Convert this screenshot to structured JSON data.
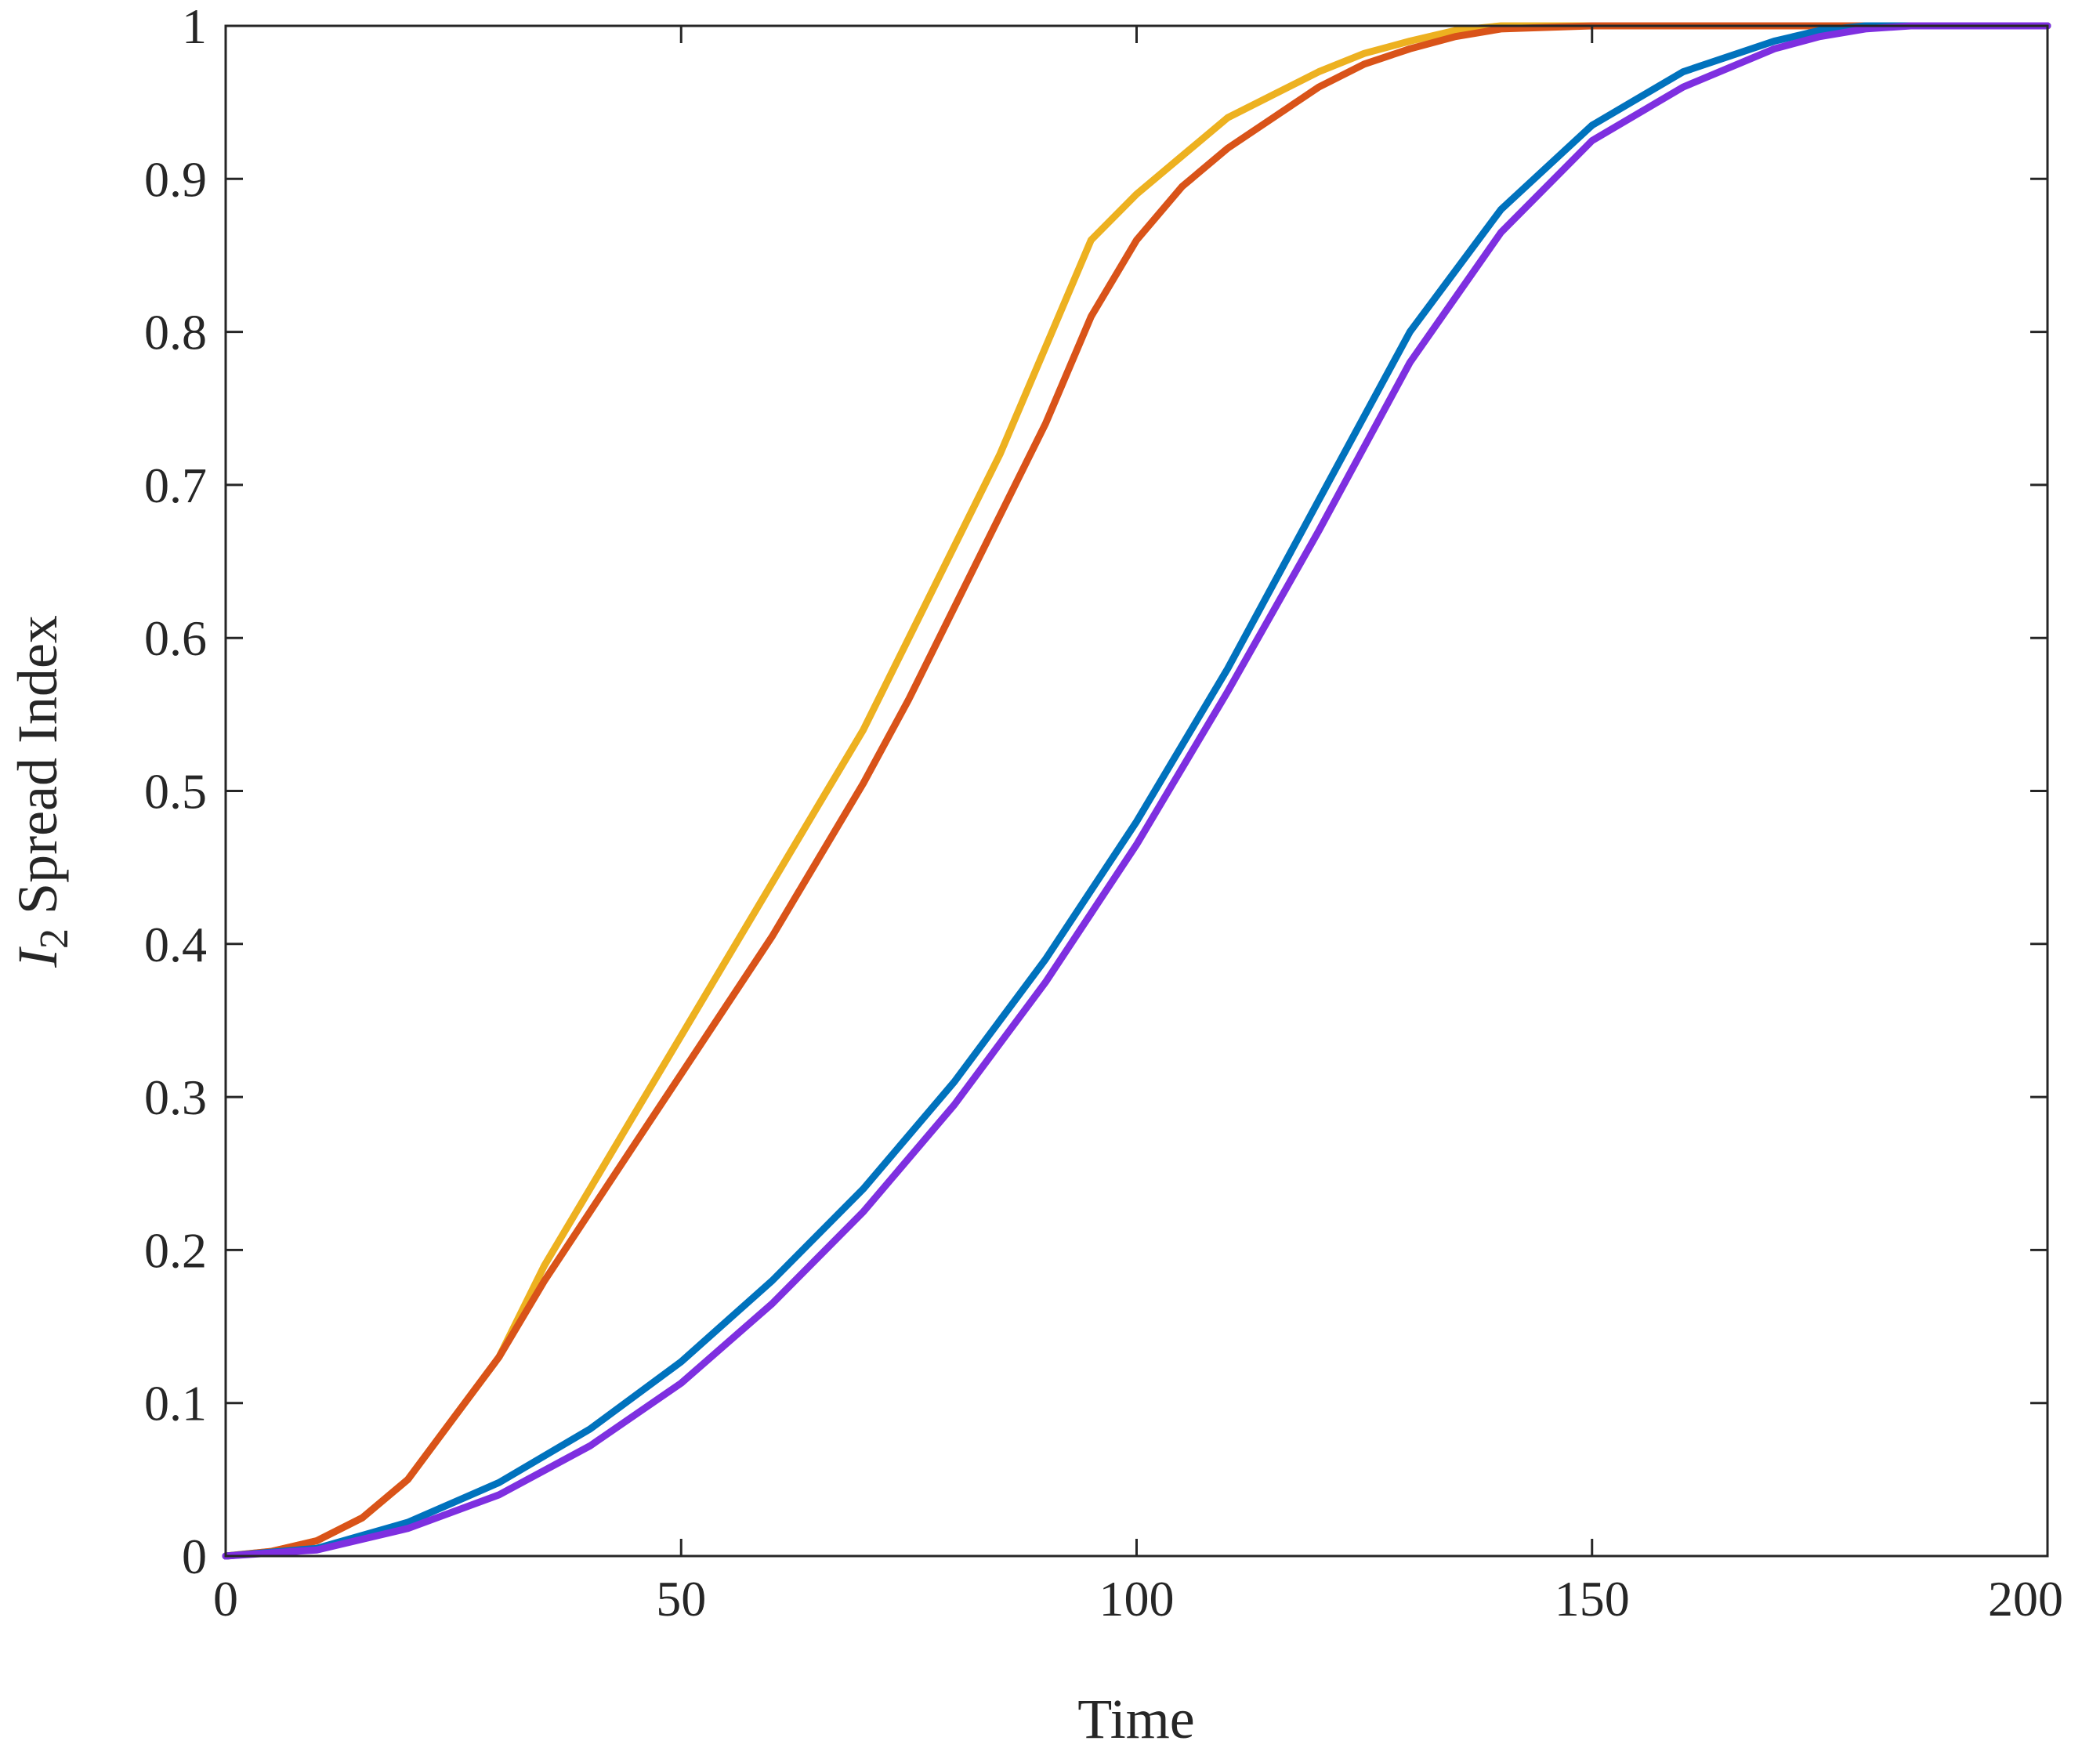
{
  "chart_data": {
    "type": "line",
    "title": "",
    "xlabel": "Time",
    "ylabel": {
      "italic": "I",
      "subscript": "2",
      "rest": " Spread Index"
    },
    "xlim": [
      0,
      200
    ],
    "ylim": [
      0,
      1
    ],
    "xticks": [
      0,
      50,
      100,
      150,
      200
    ],
    "yticks": [
      0,
      0.1,
      0.2,
      0.3,
      0.4,
      0.5,
      0.6,
      0.7,
      0.8,
      0.9,
      1
    ],
    "xtick_labels": [
      "0",
      "50",
      "100",
      "150",
      "200"
    ],
    "ytick_labels": [
      "0",
      "0.1",
      "0.2",
      "0.3",
      "0.4",
      "0.5",
      "0.6",
      "0.7",
      "0.8",
      "0.9",
      "1"
    ],
    "grid": false,
    "legend": "none",
    "series": [
      {
        "color": "#EDB120",
        "x": [
          0,
          5,
          10,
          15,
          20,
          25,
          30,
          35,
          40,
          45,
          50,
          55,
          60,
          65,
          70,
          75,
          80,
          85,
          90,
          95,
          100,
          105,
          110,
          115,
          120,
          125,
          130,
          135,
          140,
          150,
          160,
          170,
          180,
          200
        ],
        "y": [
          0,
          0.003,
          0.01,
          0.025,
          0.05,
          0.09,
          0.13,
          0.19,
          0.24,
          0.29,
          0.34,
          0.39,
          0.44,
          0.49,
          0.54,
          0.6,
          0.66,
          0.72,
          0.79,
          0.86,
          0.89,
          0.915,
          0.94,
          0.955,
          0.97,
          0.982,
          0.99,
          0.997,
          1,
          1,
          1,
          1,
          1,
          1
        ]
      },
      {
        "color": "#D95319",
        "x": [
          0,
          5,
          10,
          15,
          20,
          25,
          30,
          35,
          40,
          45,
          50,
          55,
          60,
          65,
          70,
          75,
          80,
          85,
          90,
          95,
          100,
          105,
          110,
          115,
          120,
          125,
          130,
          135,
          140,
          150,
          160,
          170,
          180,
          200
        ],
        "y": [
          0,
          0.003,
          0.01,
          0.025,
          0.05,
          0.09,
          0.13,
          0.18,
          0.225,
          0.27,
          0.315,
          0.36,
          0.405,
          0.455,
          0.505,
          0.56,
          0.62,
          0.68,
          0.74,
          0.81,
          0.86,
          0.895,
          0.92,
          0.94,
          0.96,
          0.975,
          0.985,
          0.993,
          0.998,
          1,
          1,
          1,
          1,
          1
        ]
      },
      {
        "color": "#0072BD",
        "x": [
          0,
          10,
          20,
          30,
          40,
          50,
          60,
          70,
          80,
          90,
          100,
          110,
          120,
          130,
          140,
          150,
          160,
          170,
          175,
          180,
          200
        ],
        "y": [
          0,
          0.005,
          0.022,
          0.048,
          0.083,
          0.127,
          0.18,
          0.24,
          0.31,
          0.39,
          0.48,
          0.58,
          0.69,
          0.8,
          0.88,
          0.935,
          0.97,
          0.99,
          0.997,
          1,
          1
        ]
      },
      {
        "color": "#7E2FE0",
        "x": [
          0,
          10,
          20,
          30,
          40,
          50,
          60,
          70,
          80,
          90,
          100,
          110,
          120,
          130,
          140,
          150,
          160,
          170,
          175,
          180,
          185,
          200
        ],
        "y": [
          0,
          0.004,
          0.018,
          0.04,
          0.072,
          0.113,
          0.165,
          0.225,
          0.295,
          0.375,
          0.465,
          0.565,
          0.67,
          0.78,
          0.865,
          0.925,
          0.96,
          0.985,
          0.993,
          0.998,
          1,
          1
        ]
      }
    ]
  }
}
